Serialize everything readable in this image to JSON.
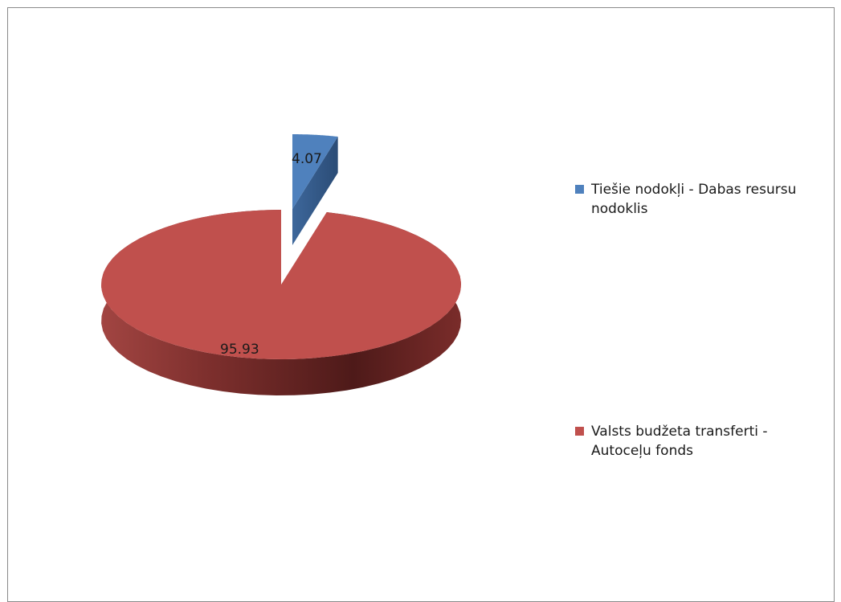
{
  "chart_data": {
    "type": "pie",
    "title": "",
    "style": "3d-exploded",
    "slices": [
      {
        "label": "Tiešie nodokļi - Dabas resursu\nnodoklis",
        "value": 4.07,
        "value_label": "4.07",
        "color": "#4F81BD"
      },
      {
        "label": "Valsts budžeta transferti -\nAutoceļu fonds",
        "value": 95.93,
        "value_label": "95.93",
        "color": "#C0504D"
      }
    ],
    "legend_position": "right"
  }
}
